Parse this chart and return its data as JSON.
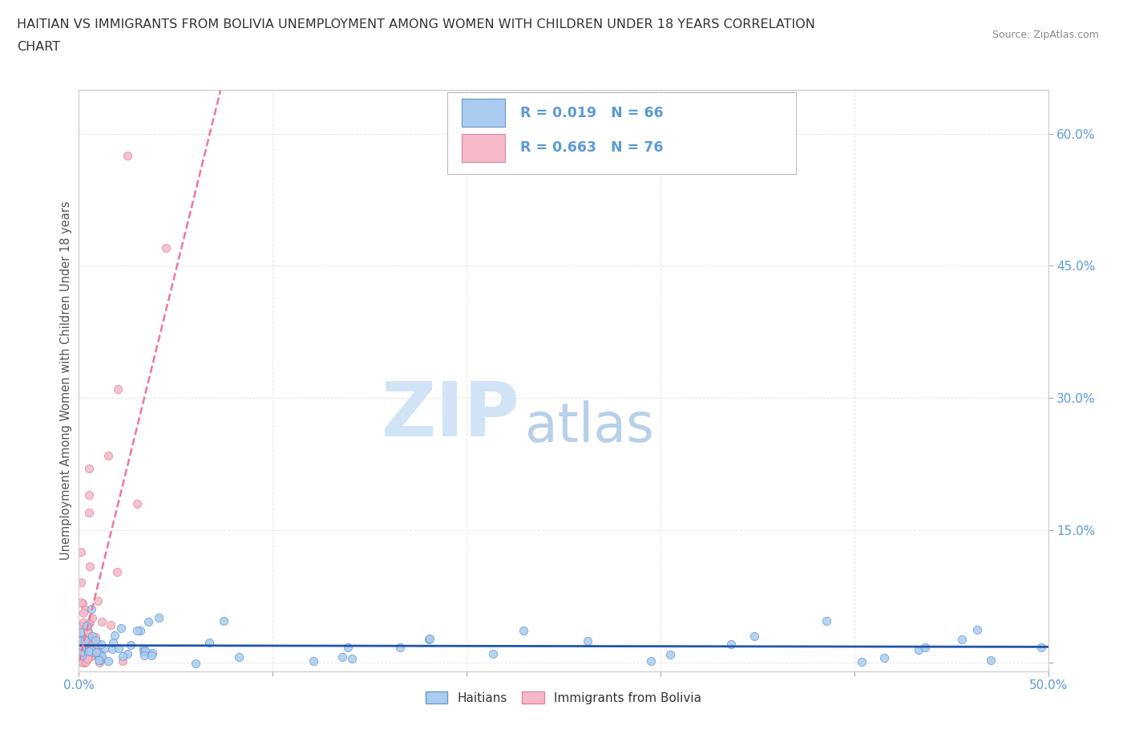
{
  "title_line1": "HAITIAN VS IMMIGRANTS FROM BOLIVIA UNEMPLOYMENT AMONG WOMEN WITH CHILDREN UNDER 18 YEARS CORRELATION",
  "title_line2": "CHART",
  "source_text": "Source: ZipAtlas.com",
  "ylabel": "Unemployment Among Women with Children Under 18 years",
  "xlim": [
    0.0,
    0.5
  ],
  "ylim": [
    -0.01,
    0.65
  ],
  "xticks": [
    0.0,
    0.1,
    0.2,
    0.3,
    0.4,
    0.5
  ],
  "xticklabels": [
    "0.0%",
    "",
    "",
    "",
    "",
    "50.0%"
  ],
  "yticks": [
    0.0,
    0.15,
    0.3,
    0.45,
    0.6
  ],
  "yticklabels": [
    "",
    "15.0%",
    "30.0%",
    "45.0%",
    "60.0%"
  ],
  "series1_label": "Haitians",
  "series1_color": "#aaccf0",
  "series1_edge": "#6699cc",
  "series1_R": 0.019,
  "series1_N": 66,
  "series1_line_color": "#2255aa",
  "series2_label": "Immigrants from Bolivia",
  "series2_color": "#f5b8c8",
  "series2_edge": "#dd8899",
  "series2_R": 0.663,
  "series2_N": 76,
  "series2_line_color": "#ee7799",
  "watermark_zip": "ZIP",
  "watermark_atlas": "atlas",
  "watermark_zip_color": "#d0e4f5",
  "watermark_atlas_color": "#b8d0e8",
  "background_color": "#ffffff",
  "grid_color": "#e8e8e8",
  "title_color": "#333333",
  "axis_color": "#5b9bd5",
  "legend_R_color": "#5b9bd5",
  "source_color": "#888888"
}
